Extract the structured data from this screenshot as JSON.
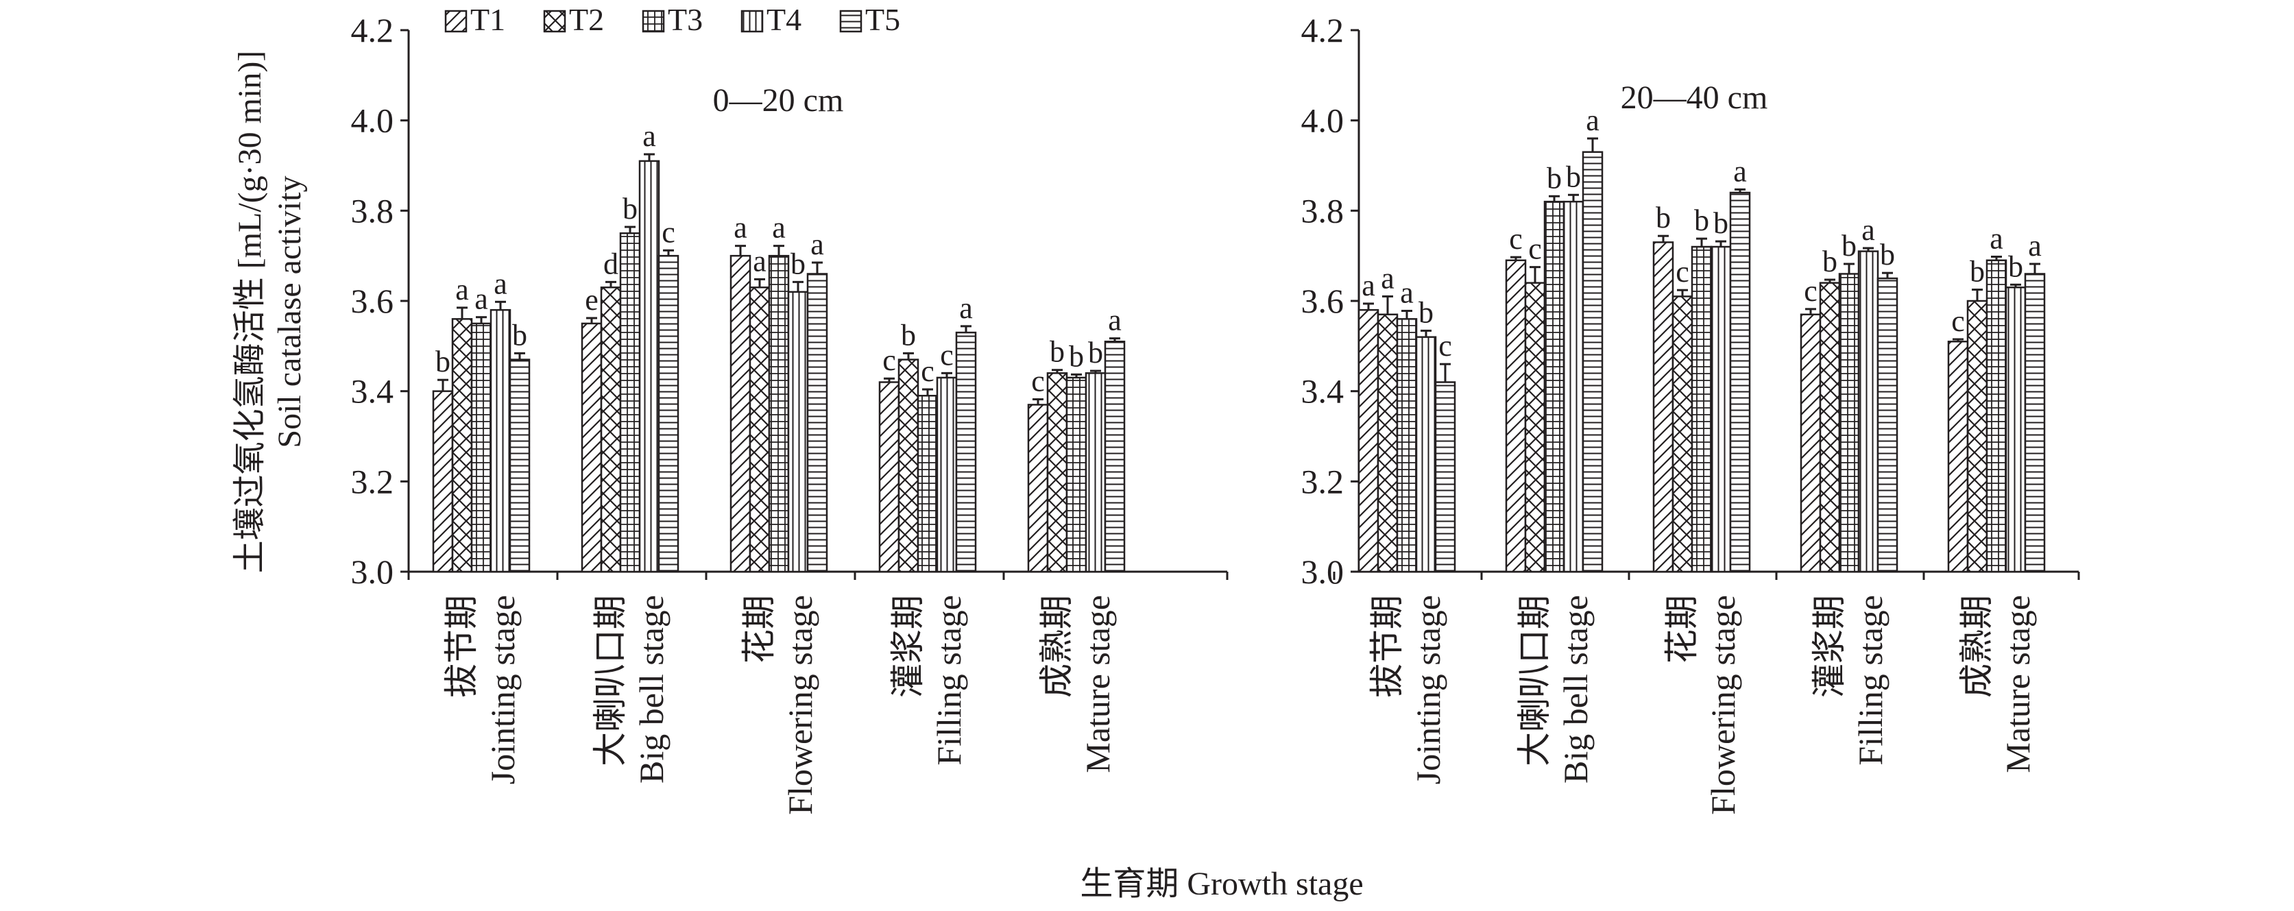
{
  "figure": {
    "ylabel_cn": "土壤过氧化氢酶活性 [mL/(g·30 min)]",
    "ylabel_en": "Soil catalase activity",
    "xlabel": "生育期 Growth stage",
    "legend_position": "top-left"
  },
  "chart_data": [
    {
      "type": "bar",
      "panel_label": "0—20 cm",
      "categories": [
        [
          "拔节期",
          "Jointing stage"
        ],
        [
          "大喇叭口期",
          "Big bell stage"
        ],
        [
          "花期",
          "Flowering stage"
        ],
        [
          "灌浆期",
          "Filling stage"
        ],
        [
          "成熟期",
          "Mature stage"
        ]
      ],
      "ylim": [
        3.0,
        4.2
      ],
      "yticks": [
        "3.0",
        "3.2",
        "3.4",
        "3.6",
        "3.8",
        "4.0",
        "4.2"
      ],
      "grid": false,
      "series": [
        {
          "name": "T1",
          "pattern": "diagonal",
          "values": [
            3.4,
            3.55,
            3.7,
            3.42,
            3.37
          ],
          "errors": [
            0.025,
            0.012,
            0.022,
            0.008,
            0.012
          ],
          "labels": [
            "b",
            "e",
            "a",
            "c",
            "c"
          ]
        },
        {
          "name": "T2",
          "pattern": "crosshatch",
          "values": [
            3.56,
            3.63,
            3.63,
            3.47,
            3.44
          ],
          "errors": [
            0.025,
            0.012,
            0.018,
            0.014,
            0.007
          ],
          "labels": [
            "a",
            "d",
            "a",
            "b",
            "b"
          ]
        },
        {
          "name": "T3",
          "pattern": "grid",
          "values": [
            3.55,
            3.75,
            3.7,
            3.39,
            3.43
          ],
          "errors": [
            0.014,
            0.014,
            0.022,
            0.014,
            0.007
          ],
          "labels": [
            "a",
            "b",
            "a",
            "c",
            "b"
          ]
        },
        {
          "name": "T4",
          "pattern": "vertical",
          "values": [
            3.58,
            3.91,
            3.62,
            3.43,
            3.44
          ],
          "errors": [
            0.018,
            0.015,
            0.022,
            0.01,
            0.005
          ],
          "labels": [
            "a",
            "a",
            "b",
            "c",
            "b"
          ]
        },
        {
          "name": "T5",
          "pattern": "horizontal",
          "values": [
            3.47,
            3.7,
            3.66,
            3.53,
            3.51
          ],
          "errors": [
            0.014,
            0.012,
            0.025,
            0.014,
            0.007
          ],
          "labels": [
            "b",
            "c",
            "a",
            "a",
            "a"
          ]
        }
      ]
    },
    {
      "type": "bar",
      "panel_label": "20—40 cm",
      "categories": [
        [
          "拔节期",
          "Jointing stage"
        ],
        [
          "大喇叭口期",
          "Big bell stage"
        ],
        [
          "花期",
          "Flowering stage"
        ],
        [
          "灌浆期",
          "Filling stage"
        ],
        [
          "成熟期",
          "Mature stage"
        ]
      ],
      "ylim": [
        3.0,
        4.2
      ],
      "yticks": [
        "3.0",
        "3.2",
        "3.4",
        "3.6",
        "3.8",
        "4.0",
        "4.2"
      ],
      "grid": false,
      "series": [
        {
          "name": "T1",
          "pattern": "diagonal",
          "values": [
            3.58,
            3.69,
            3.73,
            3.57,
            3.51
          ],
          "errors": [
            0.014,
            0.007,
            0.014,
            0.012,
            0.005
          ],
          "labels": [
            "a",
            "c",
            "b",
            "c",
            "c"
          ]
        },
        {
          "name": "T2",
          "pattern": "crosshatch",
          "values": [
            3.57,
            3.64,
            3.61,
            3.64,
            3.6
          ],
          "errors": [
            0.04,
            0.035,
            0.014,
            0.007,
            0.025
          ],
          "labels": [
            "a",
            "c",
            "c",
            "b",
            "b"
          ]
        },
        {
          "name": "T3",
          "pattern": "grid",
          "values": [
            3.56,
            3.82,
            3.72,
            3.66,
            3.69
          ],
          "errors": [
            0.018,
            0.012,
            0.018,
            0.022,
            0.008
          ],
          "labels": [
            "a",
            "b",
            "b",
            "b",
            "a"
          ]
        },
        {
          "name": "T4",
          "pattern": "vertical",
          "values": [
            3.52,
            3.82,
            3.72,
            3.71,
            3.63
          ],
          "errors": [
            0.014,
            0.015,
            0.012,
            0.007,
            0.006
          ],
          "labels": [
            "b",
            "b",
            "b",
            "a",
            "b"
          ]
        },
        {
          "name": "T5",
          "pattern": "horizontal",
          "values": [
            3.42,
            3.93,
            3.84,
            3.65,
            3.66
          ],
          "errors": [
            0.04,
            0.03,
            0.007,
            0.012,
            0.022
          ],
          "labels": [
            "c",
            "a",
            "a",
            "b",
            "a"
          ]
        }
      ]
    }
  ]
}
